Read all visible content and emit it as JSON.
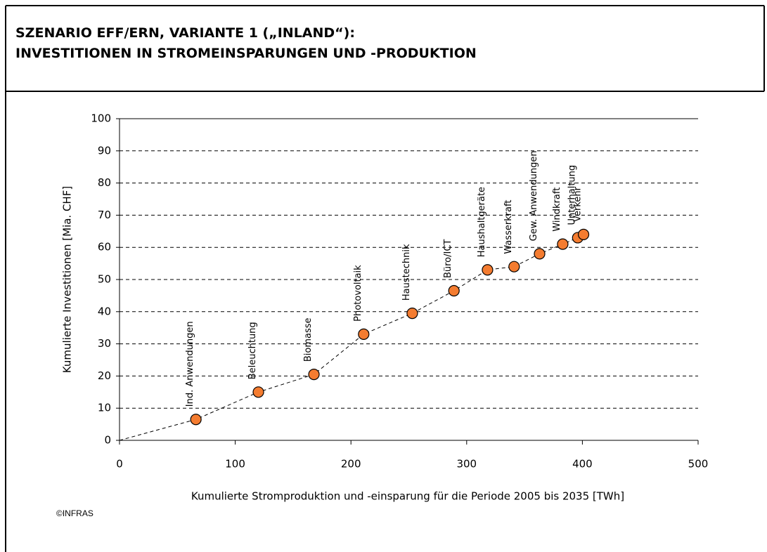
{
  "chart_data": {
    "type": "line",
    "title": "SZENARIO EFF/ERN, VARIANTE 1 („INLAND“):",
    "subtitle": "INVESTITIONEN IN STROMEINSPARUNGEN UND -PRODUKTION",
    "x_label": "Kumulierte Stromproduktion und -einsparung für die Periode 2005 bis 2035 [TWh]",
    "y_label": "Kumulierte Investitionen  [Mia. CHF]",
    "credit": "©INFRAS",
    "labels": [
      null,
      "Ind. Anwendungen",
      "Beleuchtung",
      "Biomasse",
      "Photovoltaik",
      "Haustechnik",
      "Büro/ICT",
      "Haushaltgeräte",
      "Wasserkraft",
      "Gew. Anwendungen",
      "Windkraft",
      "Unterhaltung",
      "Verkehr"
    ],
    "x": [
      0,
      66,
      120,
      168,
      211,
      253,
      289,
      318,
      341,
      363,
      383,
      396,
      401
    ],
    "values": [
      0,
      6.5,
      15,
      20.5,
      33,
      39.5,
      46.5,
      53,
      54,
      58,
      61,
      63,
      64
    ],
    "color": "#f47c30",
    "xlim": [
      0,
      500
    ],
    "xticks": [
      0,
      100,
      200,
      300,
      400,
      500
    ],
    "ylim": [
      0,
      100
    ],
    "yticks": [
      0,
      10,
      20,
      30,
      40,
      50,
      60,
      70,
      80,
      90,
      100
    ],
    "grid": true
  }
}
